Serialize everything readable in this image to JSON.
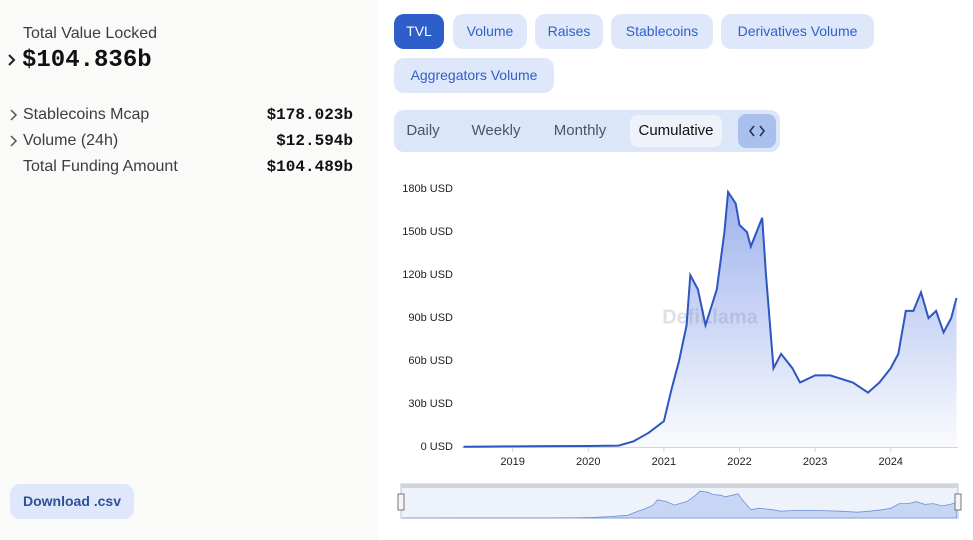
{
  "summary": {
    "title": "Total Value Locked",
    "value": "$104.836b",
    "rows": [
      [
        "Stablecoins Mcap",
        "$178.023b"
      ],
      [
        "Volume (24h)",
        "$12.594b"
      ],
      [
        "Total Funding Amount",
        "$104.489b"
      ]
    ],
    "download": "Download .csv"
  },
  "tabs": [
    "TVL",
    "Volume",
    "Raises",
    "Stablecoins",
    "Derivatives Volume",
    "Aggregators Volume"
  ],
  "periods": [
    "Daily",
    "Weekly",
    "Monthly",
    "Cumulative"
  ],
  "chart_data": {
    "type": "area",
    "watermark": "DefiLlama",
    "color": "#2f55c0",
    "x": [
      2018.35,
      2018.6,
      2019.0,
      2019.5,
      2020.0,
      2020.4,
      2020.6,
      2020.8,
      2021.0,
      2021.1,
      2021.2,
      2021.3,
      2021.35,
      2021.45,
      2021.55,
      2021.7,
      2021.8,
      2021.85,
      2021.95,
      2022.0,
      2022.1,
      2022.15,
      2022.3,
      2022.35,
      2022.45,
      2022.55,
      2022.7,
      2022.8,
      2023.0,
      2023.2,
      2023.5,
      2023.7,
      2023.85,
      2024.0,
      2024.1,
      2024.2,
      2024.3,
      2024.4,
      2024.5,
      2024.6,
      2024.7,
      2024.8,
      2024.87
    ],
    "values": [
      0.2,
      0.3,
      0.4,
      0.6,
      0.7,
      1,
      4,
      10,
      18,
      40,
      60,
      85,
      120,
      110,
      85,
      110,
      150,
      178,
      170,
      155,
      150,
      140,
      160,
      120,
      55,
      65,
      55,
      45,
      50,
      50,
      45,
      38,
      45,
      55,
      65,
      95,
      95,
      108,
      90,
      95,
      80,
      90,
      104
    ],
    "xlim": [
      2018.33,
      2024.89
    ],
    "xticks": [
      2019,
      2020,
      2021,
      2022,
      2023,
      2024
    ],
    "ylim": [
      0,
      185
    ],
    "yticks": [
      {
        "value": 0,
        "label": "0 USD"
      },
      {
        "value": 30,
        "label": "30b USD"
      },
      {
        "value": 60,
        "label": "60b USD"
      },
      {
        "value": 90,
        "label": "90b USD"
      },
      {
        "value": 120,
        "label": "120b USD"
      },
      {
        "value": 150,
        "label": "150b USD"
      },
      {
        "value": 180,
        "label": "180b USD"
      }
    ]
  }
}
